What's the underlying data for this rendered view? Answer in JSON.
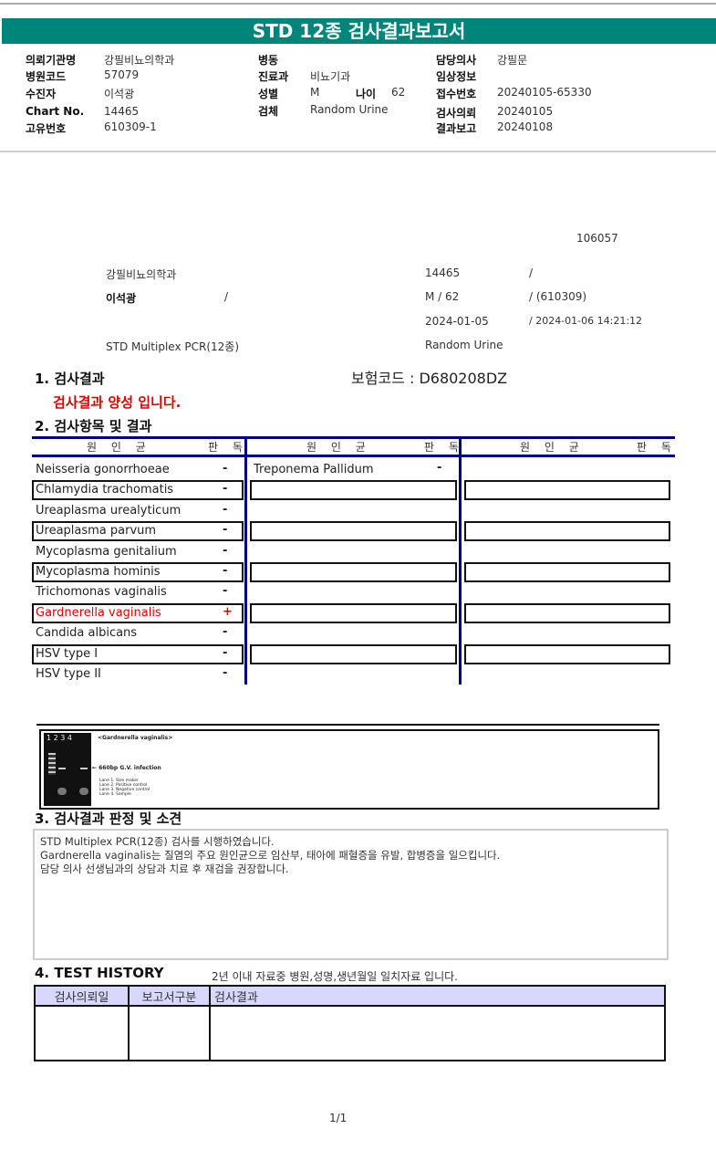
{
  "title": "STD 12종 검사결과보고서",
  "info": {
    "col1": [
      {
        "label": "의뢰기관명",
        "value": "강필비뇨의학과"
      },
      {
        "label": "병원코드",
        "value": "57079"
      },
      {
        "label": "수진자",
        "value": "이석광"
      },
      {
        "label": "Chart No.",
        "value": "14465"
      },
      {
        "label": "고유번호",
        "value": "610309-1"
      }
    ],
    "col2": [
      {
        "label": "병동",
        "value": ""
      },
      {
        "label": "진료과",
        "value": "비뇨기과"
      },
      {
        "label": "성별",
        "value": "M"
      },
      {
        "label": "검체",
        "value": "Random Urine"
      }
    ],
    "age_label": "나이",
    "age_value": "62",
    "col3": [
      {
        "label": "담당의사",
        "value": "강필문"
      },
      {
        "label": "임상정보",
        "value": ""
      },
      {
        "label": "접수번호",
        "value": "20240105-65330"
      },
      {
        "label": "검사의뢰",
        "value": "20240105"
      },
      {
        "label": "결과보고",
        "value": "20240108"
      }
    ]
  },
  "summary": {
    "code": "106057",
    "hospital": "강필비뇨의학과",
    "chart": "14465",
    "slash": "/",
    "patient": "이석광",
    "sexage": "M   /   62",
    "birth": "/ (610309)",
    "date1": "2024-01-05",
    "date2": "/ 2024-01-06  14:21:12",
    "test": "STD Multiplex PCR(12종)",
    "specimen": "Random Urine"
  },
  "s1": {
    "title": "1. 검사결과",
    "insurance": "보험코드 : D680208DZ",
    "result": "검사결과 양성 입니다."
  },
  "s2": {
    "title": "2. 검사항목 및 결과",
    "h_name": "원 인 균",
    "h_result": "판 독",
    "col1": [
      {
        "name": "Neisseria gonorrhoeae",
        "r": "-"
      },
      {
        "name": "Chlamydia trachomatis",
        "r": "-"
      },
      {
        "name": "Ureaplasma urealyticum",
        "r": "-"
      },
      {
        "name": "Ureaplasma parvum",
        "r": "-"
      },
      {
        "name": "Mycoplasma genitalium",
        "r": "-"
      },
      {
        "name": "Mycoplasma hominis",
        "r": "-"
      },
      {
        "name": "Trichomonas vaginalis",
        "r": "-"
      },
      {
        "name": "Gardnerella vaginalis",
        "r": "+",
        "positive": true
      },
      {
        "name": "Candida albicans",
        "r": "-"
      },
      {
        "name": "HSV type I",
        "r": "-"
      },
      {
        "name": "HSV type II",
        "r": "-"
      }
    ],
    "col2": [
      {
        "name": "Treponema Pallidum",
        "r": "-"
      }
    ]
  },
  "gel": {
    "lanes": "1  2  3  4",
    "title": "<Gardnerella vaginalis>",
    "band": "←  660bp G.V. infection",
    "legend": [
      "Lane 1. Size maker",
      "Lane 2. Positive control",
      "Lane 3. Negative control",
      "Lane 4. Sample"
    ]
  },
  "s3": {
    "title": "3. 검사결과 판정 및 소견",
    "lines": [
      "STD Multiplex PCR(12종) 검사를 시행하였습니다.",
      "Gardnerella vaginalis는 질염의 주요 원인균으로 임산부, 태아에 패혈증을 유발, 합병증을 일으킵니다.",
      "담당 의사 선생님과의 상담과 치료 후 재검을 권장합니다."
    ]
  },
  "s4": {
    "title": "4. TEST HISTORY",
    "note": "2년 이내 자료중 병원,성명,생년월일 일치자료 입니다.",
    "headers": [
      "검사의뢰일",
      "보고서구분",
      "검사결과"
    ]
  },
  "page": "1/1",
  "colors": {
    "header": "#00857a",
    "table_line": "#000080",
    "positive": "#e00000",
    "history_header": "#d8d8ff"
  }
}
